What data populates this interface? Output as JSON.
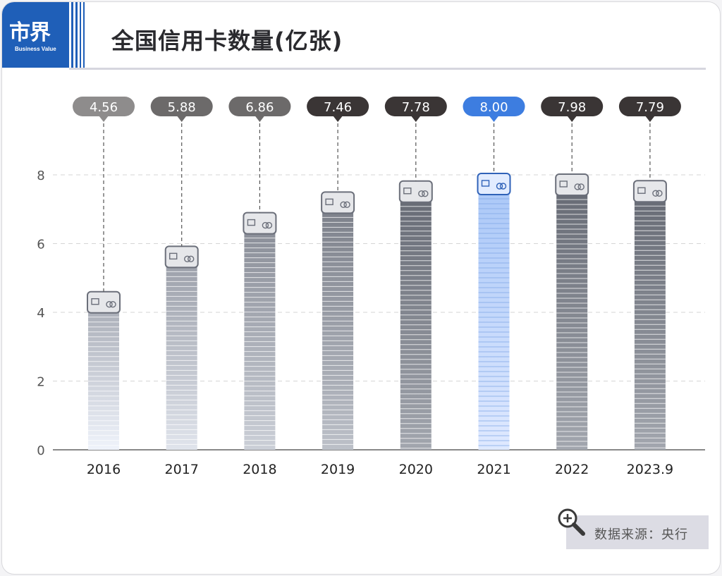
{
  "logo": {
    "text": "市界",
    "subtext": "Business Value"
  },
  "title": "全国信用卡数量(亿张)",
  "source": "数据来源：央行",
  "colors": {
    "accent": "#3d7de0",
    "highlight_bar": "#cfe0ff",
    "label_gray_light": "#8e8c8c",
    "label_gray_mid": "#6c6a6a",
    "label_dark": "#3a3535"
  },
  "chart_data": {
    "type": "bar",
    "title": "全国信用卡数量(亿张)",
    "categories": [
      "2016",
      "2017",
      "2018",
      "2019",
      "2020",
      "2021",
      "2022",
      "2023.9"
    ],
    "values": [
      4.56,
      5.88,
      6.86,
      7.46,
      7.78,
      8.0,
      7.98,
      7.79
    ],
    "value_labels": [
      "4.56",
      "5.88",
      "6.86",
      "7.46",
      "7.78",
      "8.00",
      "7.98",
      "7.79"
    ],
    "highlight_category": "2021",
    "ylim": [
      0,
      8
    ],
    "yticks": [
      0,
      2,
      4,
      6,
      8
    ],
    "grid": true,
    "xlabel": "",
    "ylabel": ""
  }
}
